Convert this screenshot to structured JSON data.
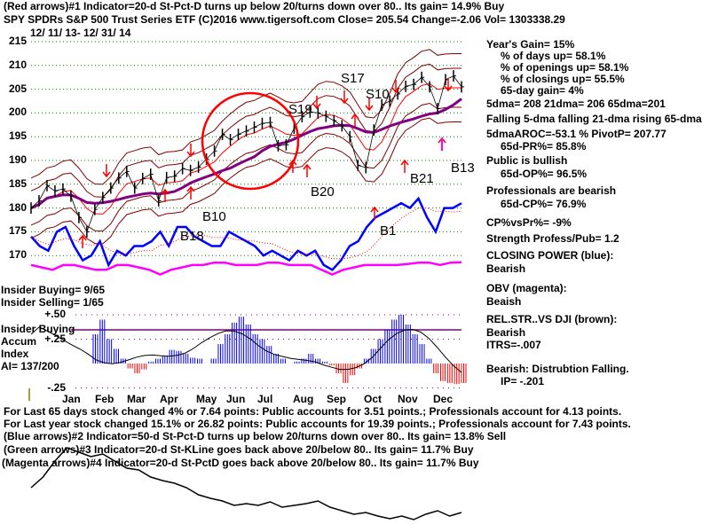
{
  "header": {
    "line1": "(Red arrows)#1 Indicator=20-d St-Pct-D turns up below 20/turns down over 80.. Its gain= 14.9% Buy",
    "line2": "SPY   SPDRs S&P 500 Trust Series ETF  (C)2016 www.tigersoft.com    Close=  205.54  Change=-2.06 Vol= 1303338.29",
    "date_range": "12/ 11/ 13- 12/ 31/ 14"
  },
  "stats": {
    "years_gain": "Year's Gain= 15%",
    "days_up": "% of days up= 58.1%",
    "openings_up": "% of openings up= 58.1%",
    "closings_up": "% of closings up= 55.5%",
    "gain65": "65-day gain= 4%",
    "dma": "5dma= 208 21dma= 206 65dma=201",
    "dma_trend": "Falling 5-dma  falling 21-dma  rising 65-dma",
    "aroc": "5dmaAROC=-53.1 %  PivotP= 207.77",
    "pr": "65d-PR%= 85.8%",
    "public": "Public is bullish",
    "op": "65d-OP%= 96.5%",
    "prof": "Professionals are bearish",
    "cp": "65d-CP%= 76.9%",
    "cpvspr": "CP%vsPr%= -9%",
    "strength": "Strength Profess/Pub= 1.2",
    "closing_power": "CLOSING POWER (blue):",
    "cp_state": "Bearish",
    "obv": "OBV (magenta):",
    "obv_state": "Beaish",
    "relstr": "REL.STR..VS DJI (brown):",
    "relstr_state": "Bearish",
    "itrs": "ITRS=-.007",
    "distribution": "Bearish: Distrubtion Falling.",
    "ip": "IP= -.201"
  },
  "insider": {
    "buying": "Insider Buying= 9/65",
    "selling": "Insider Selling= 1/65",
    "ai_label1": "Insider Buying",
    "ai_label2": "Accum",
    "ai_label3": "Index",
    "ai_value": "AI= 137/200"
  },
  "footer": {
    "l1": "For Last 65 days stock changed  4% or  7.64 points:  Public accounts for  3.51 points.;  Professionals account for  4.13 points.",
    "l2": "For Last year stock changed  15.1% or  26.82 points:  Public accounts for  19.39 points.;  Professionals account for  7.43 points.",
    "l3": "(Blue arrows)#2 Indicator=50-d St-Pct-D turns up below 20/turns down over 80.. Its gain= 13.8% Sell",
    "l4": "(Green arrows)#3 Indicator=20-d St-KLine goes back above 20/below 80.. Its gain= 11.7% Buy",
    "l5": "(Magenta arrows)#4 Indicator=20-d St-PctD goes back above 20/below 80.. Its gain= 11.7% Buy"
  },
  "colors": {
    "price": "#000000",
    "ma21": "#ff0000",
    "ma65": "#800080",
    "bands": "#800000",
    "cp": "#0000ff",
    "obv": "#ff00ff",
    "grid": "#008000"
  },
  "chart_data": {
    "type": "line",
    "title": "SPY 12/11/13-12/31/14",
    "ylim": [
      167,
      215
    ],
    "y_ticks": [
      "215",
      "210",
      "205",
      "200",
      "195",
      "190",
      "185",
      "180",
      "175",
      "170"
    ],
    "ai_ticks": [
      "+.50",
      "+.25",
      "-.25"
    ],
    "months": [
      "Jan",
      "Feb",
      "Mar",
      "Apr",
      "May",
      "Jun",
      "Jul",
      "Aug",
      "Sep",
      "Oct",
      "Nov",
      "Dec"
    ],
    "price": [
      180.0,
      181.5,
      184.7,
      183.6,
      184.0,
      182.5,
      178.0,
      175.0,
      179.7,
      182.2,
      184.2,
      186.3,
      187.7,
      184.2,
      186.2,
      187.1,
      181.5,
      186.4,
      186.7,
      188.3,
      187.9,
      188.6,
      190.3,
      192.0,
      195.5,
      194.4,
      195.5,
      196.2,
      197.0,
      197.8,
      198.0,
      193.1,
      193.3,
      196.8,
      199.2,
      200.2,
      200.0,
      199.3,
      198.4,
      197.3,
      195.0,
      189.0,
      188.5,
      196.4,
      201.7,
      202.5,
      204.0,
      205.6,
      206.0,
      207.5,
      205.5,
      200.9,
      207.0,
      207.8,
      205.5
    ],
    "closing_power": [
      174,
      172,
      171,
      175,
      176,
      172,
      169,
      170,
      173,
      168,
      171,
      170,
      172,
      172,
      173,
      175,
      172,
      176,
      176,
      174,
      173,
      172,
      172,
      175,
      174,
      173,
      172,
      170,
      171,
      170,
      169,
      171,
      170,
      171,
      168,
      167,
      169,
      172,
      173,
      176,
      178,
      179,
      180,
      181,
      180,
      182,
      178,
      175,
      180,
      180,
      181
    ],
    "obv": [
      168,
      167.5,
      167,
      168,
      168,
      167.5,
      167,
      167,
      168,
      168,
      167.5,
      167,
      166,
      167,
      167.5,
      168,
      168,
      168.5,
      168.5,
      168,
      168,
      168,
      168.5,
      168.5,
      168,
      168,
      168,
      167,
      166,
      167,
      167.5,
      168,
      168,
      168,
      168,
      168.2,
      168.5,
      168.5,
      168,
      168.5,
      168.6
    ],
    "accum_index": [
      0.3,
      0.45,
      0.25,
      0.15,
      0.05,
      -0.05,
      -0.1,
      -0.06,
      0.02,
      0.05,
      0.08,
      0.14,
      0.13,
      0.1,
      0.06,
      0.05,
      0.0,
      0.05,
      0.2,
      0.3,
      0.42,
      0.48,
      0.4,
      0.3,
      0.25,
      0.18,
      0.1,
      0.05,
      0.0,
      0.02,
      0.05,
      0.1,
      0.05,
      0.02,
      -0.02,
      -0.1,
      -0.2,
      -0.12,
      -0.05,
      0.05,
      0.15,
      0.25,
      0.35,
      0.45,
      0.5,
      0.4,
      0.3,
      0.2,
      0.05,
      -0.1,
      -0.18,
      -0.2,
      -0.21,
      -0.2
    ],
    "rel_strength": [
      50,
      62,
      80,
      95,
      90,
      85,
      88,
      80,
      72,
      70,
      62,
      58,
      55,
      50,
      42,
      38,
      35,
      30,
      32,
      30,
      34,
      28,
      30,
      32,
      35,
      28,
      24,
      20,
      22,
      18,
      15,
      18,
      14,
      20,
      24,
      18,
      22
    ]
  }
}
